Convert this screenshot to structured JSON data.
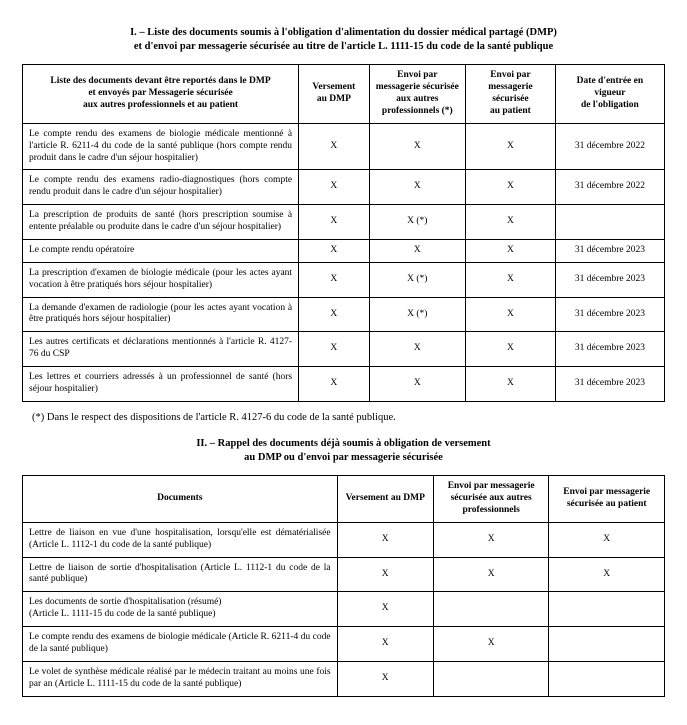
{
  "section1": {
    "heading_line1": "I. – Liste des documents soumis à l'obligation d'alimentation du dossier médical partagé (DMP)",
    "heading_line2": "et d'envoi par messagerie sécurisée au titre de l'article L. 1111-15 du code de la santé publique",
    "columns": {
      "c0": "Liste des documents devant être reportés dans le DMP\net envoyés par Messagerie sécurisée\naux autres professionnels et au patient",
      "c1": "Versement\nau DMP",
      "c2": "Envoi par\nmessagerie sécurisée\naux autres\nprofessionnels (*)",
      "c3": "Envoi par\nmessagerie sécurisée\nau patient",
      "c4": "Date d'entrée en\nvigueur\nde l'obligation"
    },
    "rows": [
      {
        "desc": "Le compte rendu des examens de biologie médicale mentionné à l'article R. 6211-4 du code de la santé publique (hors compte rendu produit dans le cadre d'un séjour hospitalier)",
        "c1": "X",
        "c2": "X",
        "c3": "X",
        "c4": "31 décembre 2022"
      },
      {
        "desc": "Le compte rendu des examens radio-diagnostiques (hors compte rendu produit dans le cadre d'un séjour hospitalier)",
        "c1": "X",
        "c2": "X",
        "c3": "X",
        "c4": "31 décembre 2022"
      },
      {
        "desc": "La prescription de produits de santé (hors prescription soumise à entente préalable ou produite dans le cadre d'un séjour hospitalier)",
        "c1": "X",
        "c2": "X (*)",
        "c3": "X",
        "c4": ""
      },
      {
        "desc": "Le compte rendu opératoire",
        "c1": "X",
        "c2": "X",
        "c3": "X",
        "c4": "31 décembre 2023"
      },
      {
        "desc": "La prescription d'examen de biologie médicale (pour les actes ayant vocation à être pratiqués hors séjour hospitalier)",
        "c1": "X",
        "c2": "X (*)",
        "c3": "X",
        "c4": "31 décembre 2023"
      },
      {
        "desc": "La demande d'examen de radiologie (pour les actes ayant vocation à être pratiqués hors séjour hospitalier)",
        "c1": "X",
        "c2": "X (*)",
        "c3": "X",
        "c4": "31 décembre 2023"
      },
      {
        "desc": "Les autres certificats et déclarations mentionnés à l'article R. 4127-76 du CSP",
        "c1": "X",
        "c2": "X",
        "c3": "X",
        "c4": "31 décembre 2023"
      },
      {
        "desc": "Les lettres et courriers adressés à un professionnel de santé (hors séjour hospitalier)",
        "c1": "X",
        "c2": "X",
        "c3": "X",
        "c4": "31 décembre 2023"
      }
    ],
    "col_widths": [
      "43%",
      "11%",
      "15%",
      "14%",
      "17%"
    ]
  },
  "footnote": "(*) Dans le respect des dispositions de l'article R. 4127-6 du code de la santé publique.",
  "section2": {
    "heading_line1": "II. – Rappel des documents déjà soumis à obligation de versement",
    "heading_line2": "au DMP ou d'envoi par messagerie sécurisée",
    "columns": {
      "c0": "Documents",
      "c1": "Versement au DMP",
      "c2": "Envoi par messagerie\nsécurisée aux autres\nprofessionnels",
      "c3": "Envoi par messagerie\nsécurisée au patient"
    },
    "rows": [
      {
        "desc": "Lettre de liaison en vue d'une hospitalisation, lorsqu'elle est dématérialisée (Article L. 1112-1 du code de la santé publique)",
        "c1": "X",
        "c2": "X",
        "c3": "X"
      },
      {
        "desc": "Lettre de liaison de sortie d'hospitalisation (Article L. 1112-1 du code de la santé publique)",
        "c1": "X",
        "c2": "X",
        "c3": "X"
      },
      {
        "desc": "Les documents de sortie d'hospitalisation (résumé)\n(Article L. 1111-15 du code de la santé publique)",
        "c1": "X",
        "c2": "",
        "c3": ""
      },
      {
        "desc": "Le compte rendu des examens de biologie médicale (Article R. 6211-4 du code de la santé publique)",
        "c1": "X",
        "c2": "X",
        "c3": ""
      },
      {
        "desc": "Le volet de synthèse médicale réalisé par le médecin traitant au moins une fois par an (Article L. 1111-15 du code de la santé publique)",
        "c1": "X",
        "c2": "",
        "c3": ""
      }
    ],
    "col_widths": [
      "49%",
      "15%",
      "18%",
      "18%"
    ]
  }
}
